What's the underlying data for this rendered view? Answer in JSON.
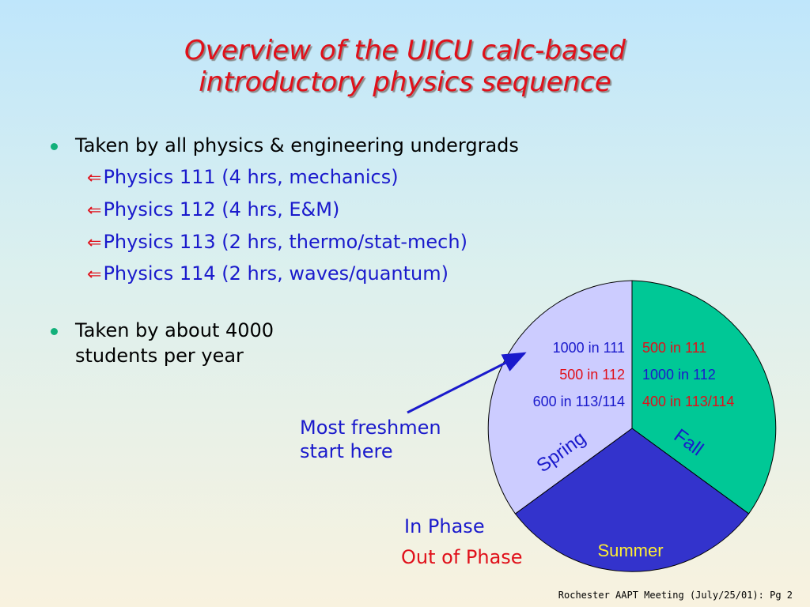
{
  "title": {
    "line1": "Overview of the UICU calc-based",
    "line2": "introductory physics sequence"
  },
  "bullets": [
    {
      "text": "Taken by all physics & engineering undergrads",
      "sub": [
        "Physics 111 (4 hrs, mechanics)",
        "Physics 112 (4 hrs, E&M)",
        "Physics 113 (2 hrs, thermo/stat-mech)",
        "Physics 114 (2 hrs, waves/quantum)"
      ]
    },
    {
      "text_line1": "Taken by about 4000",
      "text_line2": "students per year"
    }
  ],
  "pie": {
    "sectors": [
      {
        "name": "Fall",
        "color": "#00c896"
      },
      {
        "name": "Summer",
        "color": "#3333cc"
      },
      {
        "name": "Spring",
        "color": "#ccccff"
      }
    ],
    "spring_counts": [
      {
        "text": "1000 in 111",
        "color": "#1a1acc"
      },
      {
        "text": "500 in 112",
        "color": "#e0101a"
      },
      {
        "text": "600 in 113/114",
        "color": "#1a1acc"
      }
    ],
    "fall_counts": [
      {
        "text": "500 in 111",
        "color": "#e0101a"
      },
      {
        "text": "1000 in 112",
        "color": "#1a1acc"
      },
      {
        "text": "400 in 113/114",
        "color": "#e0101a"
      }
    ]
  },
  "callout": {
    "line1": "Most freshmen",
    "line2": "start here"
  },
  "legend": {
    "in_phase": "In Phase",
    "out_of_phase": "Out of Phase"
  },
  "footer": "Rochester AAPT Meeting (July/25/01): Pg 2",
  "colors": {
    "title": "#e0101a",
    "in_phase": "#1a1acc",
    "out_of_phase": "#e0101a",
    "bullet": "#12b07a"
  }
}
